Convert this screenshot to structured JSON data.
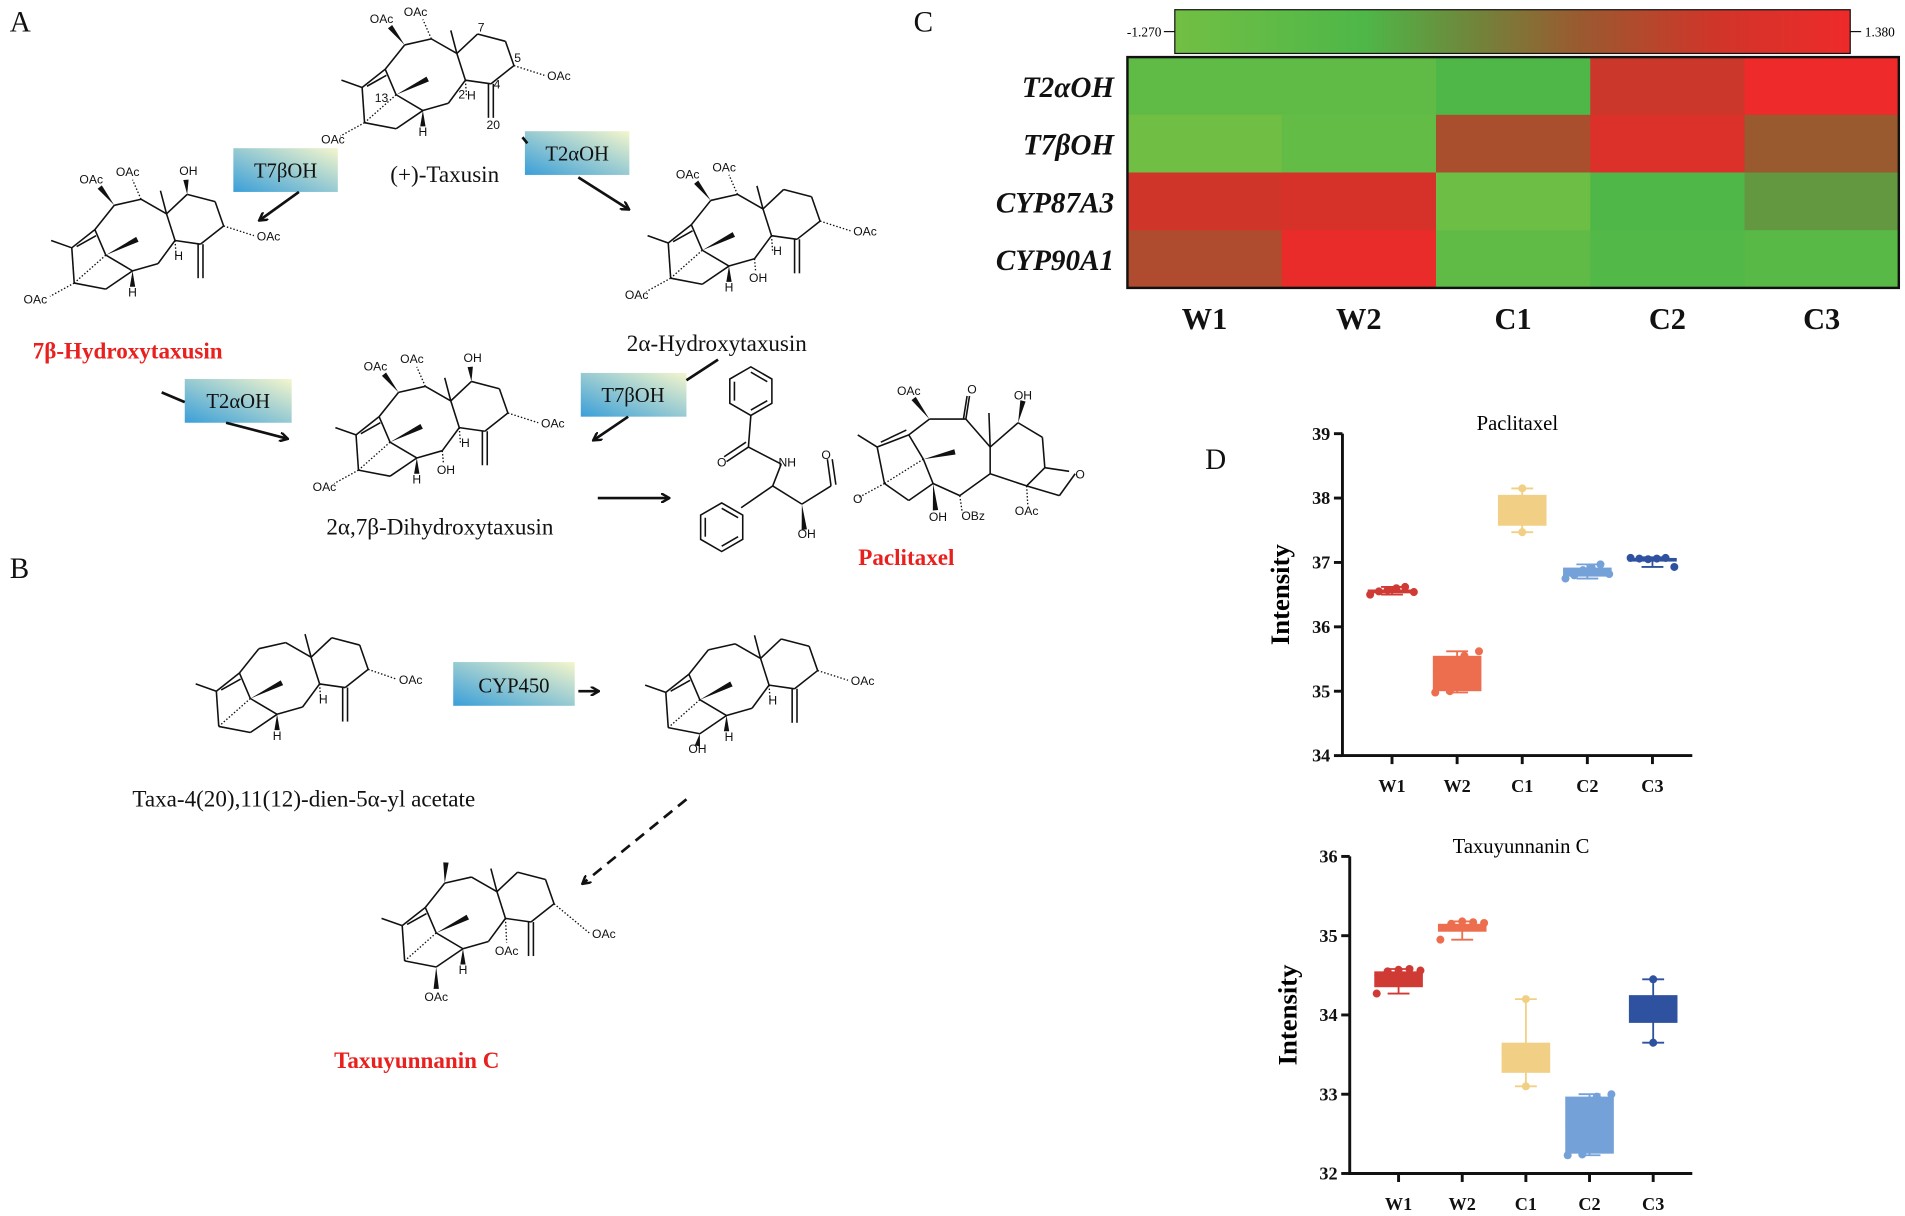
{
  "panels": {
    "a": "A",
    "b": "B",
    "c": "C",
    "d": "D"
  },
  "panel_a": {
    "compounds": {
      "taxusin": "(+)-Taxusin",
      "hydroxy7b": "7β-Hydroxytaxusin",
      "hydroxy2a": "2α-Hydroxytaxusin",
      "dihydroxy": "2α,7β-Dihydroxytaxusin",
      "paclitaxel": "Paclitaxel"
    },
    "enzymes": [
      "T7βOH",
      "T2αOH",
      "T2αOH",
      "T7βOH"
    ],
    "structure_labels": {
      "taxusin": [
        "OAc",
        "OAc",
        "OAc",
        "OAc",
        "H",
        "H",
        "7",
        "5",
        "4",
        "2",
        "13",
        "20"
      ],
      "hydroxy7b": [
        "OAc",
        "OAc",
        "OH",
        "OAc",
        "OAc",
        "H",
        "H"
      ],
      "hydroxy2a": [
        "OAc",
        "OAc",
        "OAc",
        "OAc",
        "H",
        "H",
        "OH"
      ],
      "dihydroxy": [
        "OAc",
        "OAc",
        "OH",
        "OAc",
        "OAc",
        "H",
        "H",
        "OH"
      ],
      "paclitaxel": [
        "OAc",
        "O",
        "OH",
        "O",
        "OAc",
        "OH",
        "OBz",
        "O",
        "NH",
        "O",
        "O",
        "OH"
      ]
    }
  },
  "panel_b": {
    "compounds": {
      "precursor": "Taxa-4(20),11(12)-dien-5α-yl acetate",
      "taxuyunnanin": "Taxuyunnanin C"
    },
    "enzyme": "CYP450",
    "structure_labels": {
      "precursor": [
        "OAc",
        "H",
        "H"
      ],
      "intermediate": [
        "OAc",
        "H",
        "H",
        "OH"
      ],
      "taxuyunnanin": [
        "OAc",
        "OAc",
        "OAc",
        "H"
      ]
    }
  },
  "colors": {
    "low": "#72bf44",
    "mid_green": "#4eb748",
    "mid": "#8a6b35",
    "high": "#ee2a2a",
    "enzyme_box_start": "#3a9fd8",
    "enzyme_box_end": "#f4f6cc",
    "highlight_text": "#e8201e"
  },
  "chart_data": [
    {
      "type": "heatmap",
      "title": "",
      "rows": [
        "T2αOH",
        "T7βOH",
        "CYP87A3",
        "CYP90A1"
      ],
      "columns": [
        "W1",
        "W2",
        "C1",
        "C2",
        "C3"
      ],
      "values": [
        [
          -0.87,
          -0.87,
          -0.55,
          0.8,
          1.38
        ],
        [
          -1.22,
          -0.95,
          0.48,
          1.04,
          0.32
        ],
        [
          0.85,
          0.98,
          -1.14,
          -0.53,
          -0.26
        ],
        [
          0.53,
          1.3,
          -0.87,
          -0.61,
          -0.74
        ]
      ],
      "colorbar": {
        "min": -1.27,
        "max": 1.38,
        "min_label": "-1.270",
        "max_label": "1.380",
        "placement": "top"
      }
    },
    {
      "type": "box",
      "title": "Paclitaxel",
      "ylabel": "Intensity",
      "xlabel": "",
      "ylim": [
        34,
        39
      ],
      "yticks": [
        "34",
        "35",
        "36",
        "37",
        "38",
        "39"
      ],
      "categories": [
        "W1",
        "W2",
        "C1",
        "C2",
        "C3"
      ],
      "series_colors": [
        "#d03a34",
        "#ec6e4f",
        "#f1d085",
        "#74a1d8",
        "#2f52a0"
      ],
      "boxes": [
        {
          "min": 36.5,
          "q1": 36.52,
          "median": 36.55,
          "q3": 36.58,
          "max": 36.62,
          "points": [
            36.5,
            36.55,
            36.57,
            36.6,
            36.62,
            36.54
          ]
        },
        {
          "min": 34.98,
          "q1": 35.0,
          "median": 35.3,
          "q3": 35.55,
          "max": 35.62,
          "points": [
            34.98,
            35.0,
            35.55,
            35.62
          ]
        },
        {
          "min": 37.47,
          "q1": 37.57,
          "median": 37.8,
          "q3": 38.05,
          "max": 38.15,
          "points": [
            37.47,
            38.15
          ]
        },
        {
          "min": 36.75,
          "q1": 36.78,
          "median": 36.85,
          "q3": 36.92,
          "max": 36.97,
          "points": [
            36.75,
            36.8,
            36.88,
            36.92,
            36.97,
            36.82
          ]
        },
        {
          "min": 36.93,
          "q1": 37.03,
          "median": 37.05,
          "q3": 37.07,
          "max": 37.08,
          "points": [
            37.07,
            37.06,
            37.05,
            37.06,
            37.07,
            36.93
          ]
        }
      ]
    },
    {
      "type": "box",
      "title": "Taxuyunnanin C",
      "ylabel": "Intensity",
      "xlabel": "",
      "ylim": [
        32,
        36
      ],
      "yticks": [
        "32",
        "33",
        "34",
        "35",
        "36"
      ],
      "categories": [
        "W1",
        "W2",
        "C1",
        "C2",
        "C3"
      ],
      "series_colors": [
        "#d03a34",
        "#ec6e4f",
        "#f1d085",
        "#74a1d8",
        "#2f52a0"
      ],
      "boxes": [
        {
          "min": 34.27,
          "q1": 34.35,
          "median": 34.5,
          "q3": 34.55,
          "max": 34.58,
          "points": [
            34.27,
            34.55,
            34.57,
            34.58,
            34.56
          ]
        },
        {
          "min": 34.95,
          "q1": 35.05,
          "median": 35.12,
          "q3": 35.15,
          "max": 35.18,
          "points": [
            34.95,
            35.15,
            35.18,
            35.17,
            35.16
          ]
        },
        {
          "min": 33.1,
          "q1": 33.27,
          "median": 33.5,
          "q3": 33.65,
          "max": 34.2,
          "points": [
            33.1,
            34.2
          ]
        },
        {
          "min": 32.23,
          "q1": 32.25,
          "median": 32.6,
          "q3": 32.97,
          "max": 33.0,
          "points": [
            32.23,
            32.24,
            32.97,
            33.0
          ]
        },
        {
          "min": 33.65,
          "q1": 33.9,
          "median": 34.05,
          "q3": 34.25,
          "max": 34.45,
          "points": [
            33.65,
            34.45
          ]
        }
      ]
    }
  ]
}
